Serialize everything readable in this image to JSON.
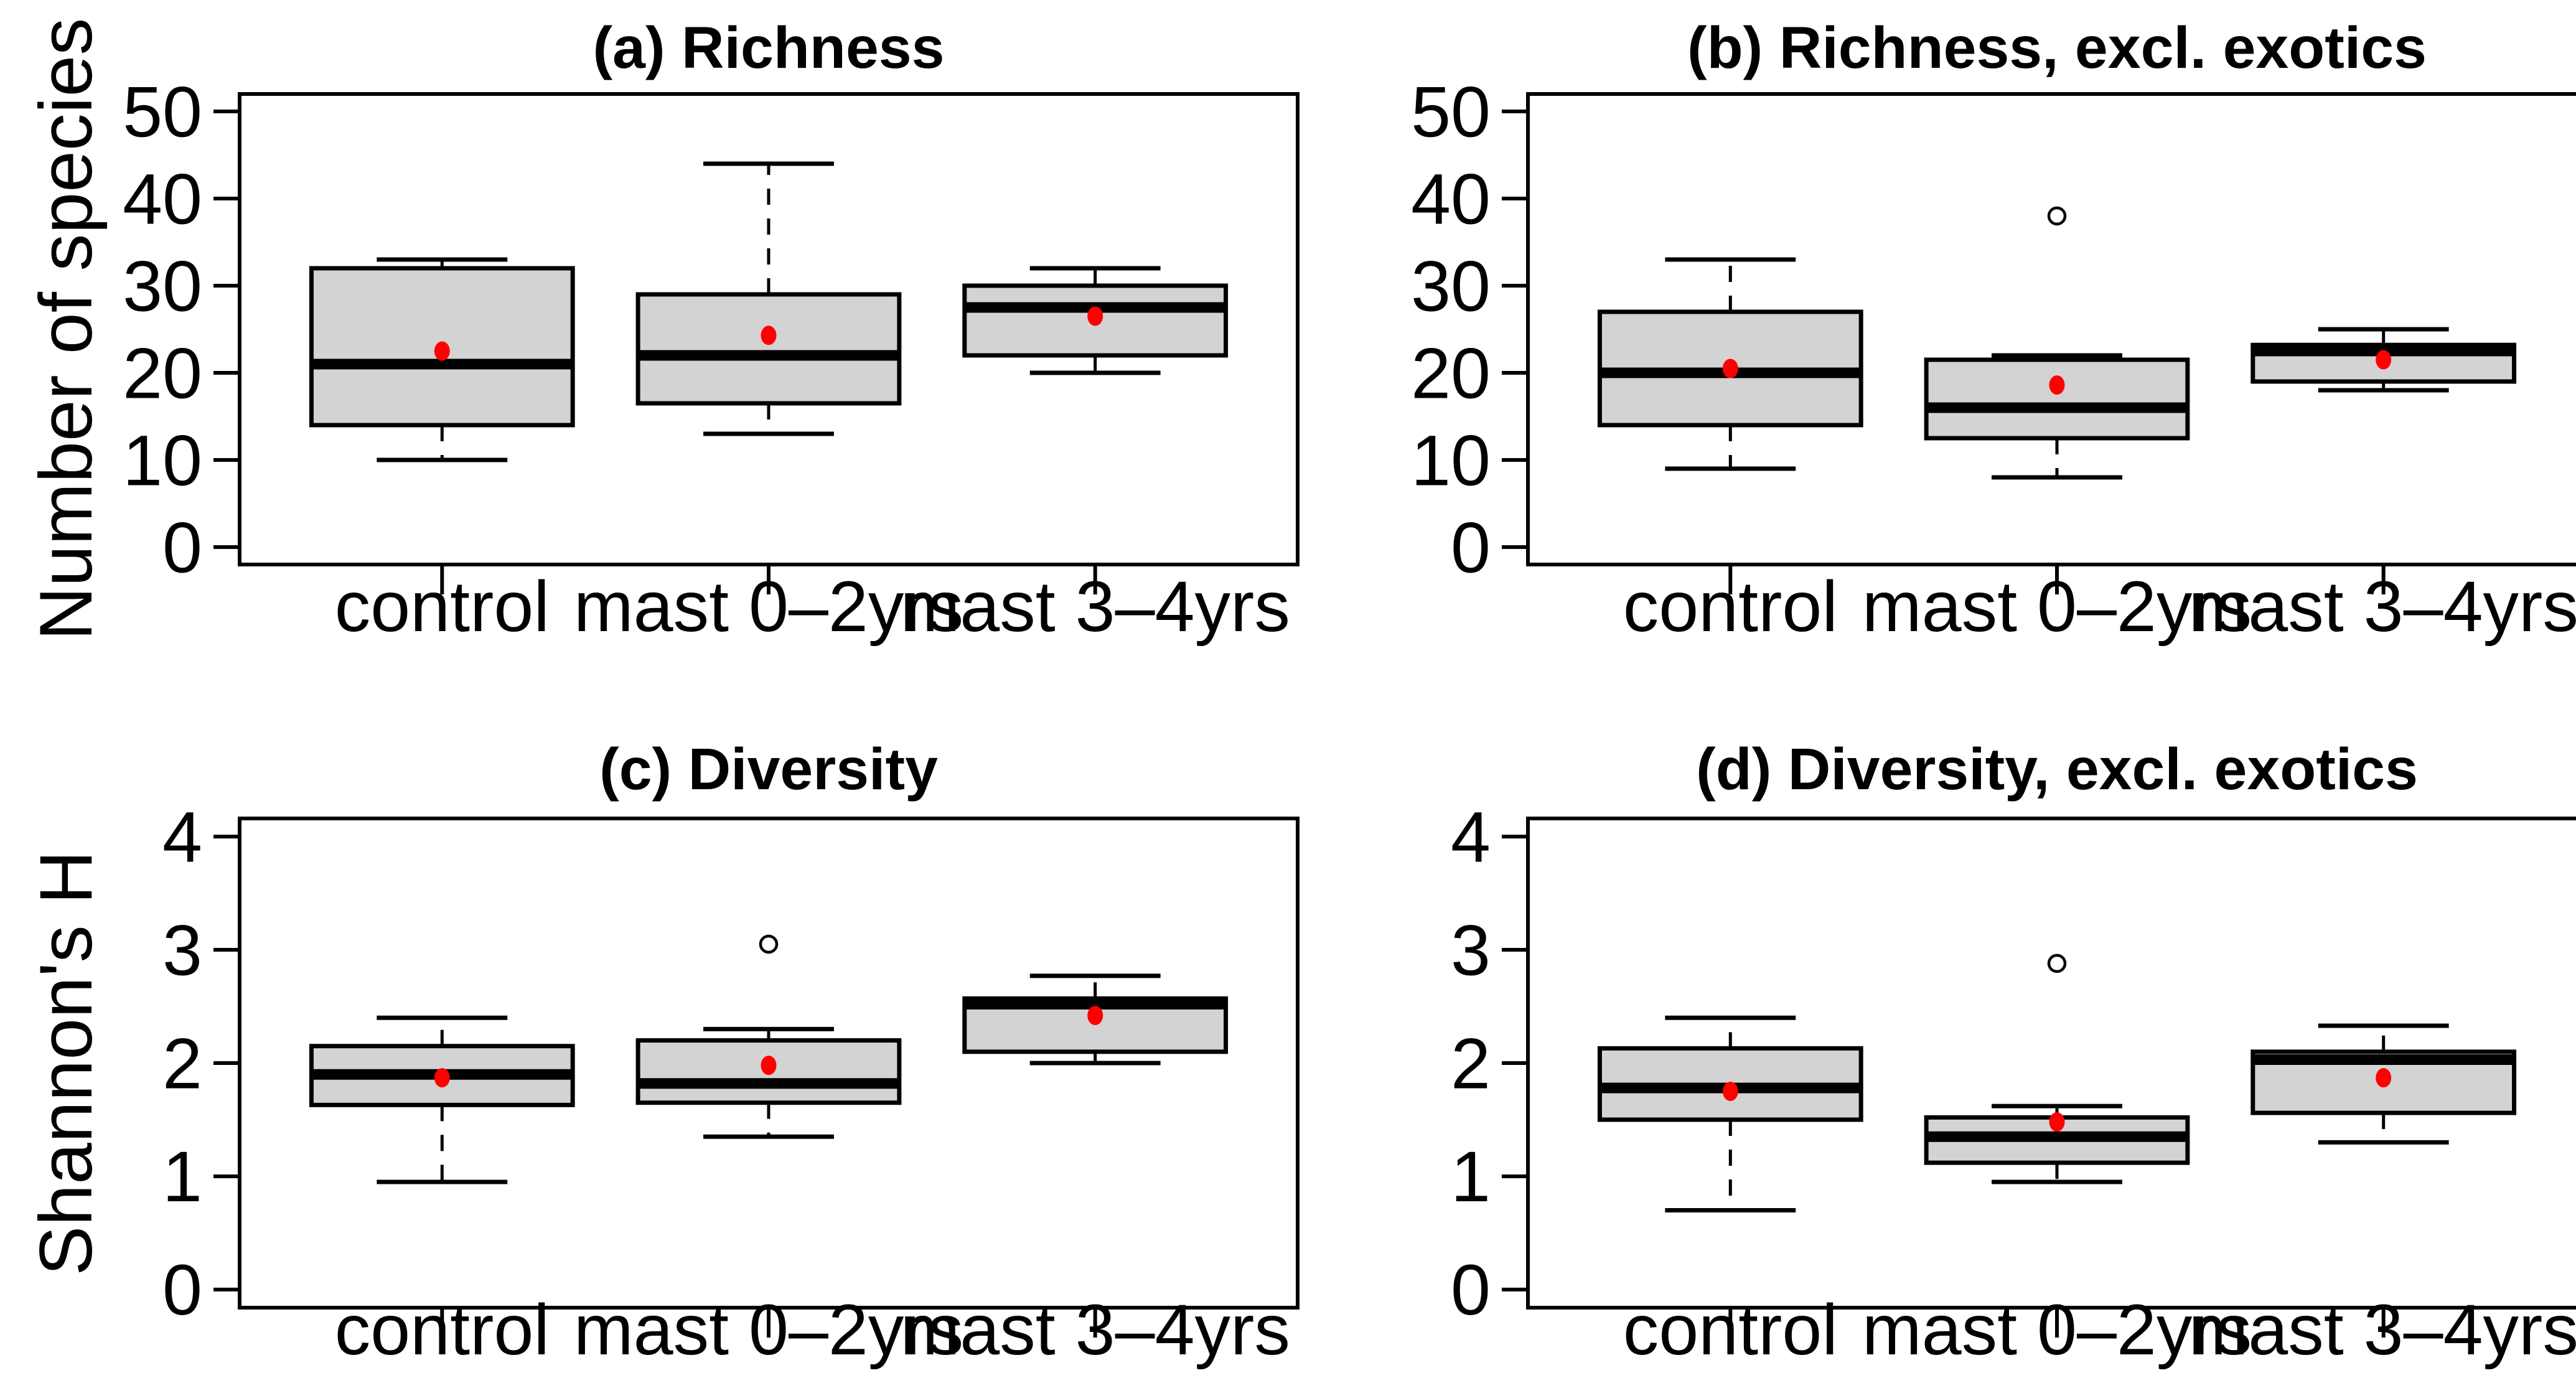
{
  "colors": {
    "background": "#ffffff",
    "axis": "#000000",
    "text": "#000000",
    "box_fill": "#d3d3d3",
    "box_border": "#000000",
    "median": "#000000",
    "whisker": "#000000",
    "mean_point": "#ff0000",
    "outlier": "#000000"
  },
  "chart_data": [
    {
      "id": "a",
      "type": "boxplot",
      "title": "(a) Richness",
      "ylabel": "Number of species",
      "ylim": [
        0,
        50
      ],
      "yticks": [
        0,
        10,
        20,
        30,
        40,
        50
      ],
      "grid": false,
      "categories": [
        "control",
        "mast 0–2yrs",
        "mast 3–4yrs"
      ],
      "groups": [
        {
          "label": "control",
          "whisker_low": 10,
          "q1": 14,
          "median": 21,
          "q3": 32,
          "whisker_high": 33,
          "mean": 22.5,
          "outliers": []
        },
        {
          "label": "mast 0–2yrs",
          "whisker_low": 13,
          "q1": 16.5,
          "median": 22,
          "q3": 29,
          "whisker_high": 44,
          "mean": 24.3,
          "outliers": []
        },
        {
          "label": "mast 3–4yrs",
          "whisker_low": 20,
          "q1": 22,
          "median": 27.5,
          "q3": 30,
          "whisker_high": 32,
          "mean": 26.5,
          "outliers": []
        }
      ]
    },
    {
      "id": "b",
      "type": "boxplot",
      "title": "(b) Richness, excl. exotics",
      "ylabel": "",
      "ylim": [
        0,
        50
      ],
      "yticks": [
        0,
        10,
        20,
        30,
        40,
        50
      ],
      "grid": false,
      "categories": [
        "control",
        "mast 0–2yrs",
        "mast 3–4yrs"
      ],
      "groups": [
        {
          "label": "control",
          "whisker_low": 9,
          "q1": 14,
          "median": 20,
          "q3": 27,
          "whisker_high": 33,
          "mean": 20.5,
          "outliers": []
        },
        {
          "label": "mast 0–2yrs",
          "whisker_low": 8,
          "q1": 12.5,
          "median": 16,
          "q3": 21.5,
          "whisker_high": 22,
          "mean": 18.6,
          "outliers": [
            38
          ]
        },
        {
          "label": "mast 3–4yrs",
          "whisker_low": 18,
          "q1": 19,
          "median": 22.5,
          "q3": 23.2,
          "whisker_high": 25,
          "mean": 21.5,
          "outliers": []
        }
      ]
    },
    {
      "id": "c",
      "type": "boxplot",
      "title": "(c) Diversity",
      "ylabel": "Shannon's H",
      "ylim": [
        0,
        4
      ],
      "yticks": [
        0,
        1,
        2,
        3,
        4
      ],
      "grid": false,
      "categories": [
        "control",
        "mast 0–2yrs",
        "mast 3–4yrs"
      ],
      "groups": [
        {
          "label": "control",
          "whisker_low": 0.95,
          "q1": 1.63,
          "median": 1.9,
          "q3": 2.15,
          "whisker_high": 2.4,
          "mean": 1.87,
          "outliers": []
        },
        {
          "label": "mast 0–2yrs",
          "whisker_low": 1.35,
          "q1": 1.65,
          "median": 1.82,
          "q3": 2.2,
          "whisker_high": 2.3,
          "mean": 1.98,
          "outliers": [
            3.05
          ]
        },
        {
          "label": "mast 3–4yrs",
          "whisker_low": 2.0,
          "q1": 2.1,
          "median": 2.52,
          "q3": 2.57,
          "whisker_high": 2.77,
          "mean": 2.42,
          "outliers": []
        }
      ]
    },
    {
      "id": "d",
      "type": "boxplot",
      "title": "(d) Diversity, excl. exotics",
      "ylabel": "",
      "ylim": [
        0,
        4
      ],
      "yticks": [
        0,
        1,
        2,
        3,
        4
      ],
      "grid": false,
      "categories": [
        "control",
        "mast 0–2yrs",
        "mast 3–4yrs"
      ],
      "groups": [
        {
          "label": "control",
          "whisker_low": 0.7,
          "q1": 1.5,
          "median": 1.78,
          "q3": 2.13,
          "whisker_high": 2.4,
          "mean": 1.75,
          "outliers": []
        },
        {
          "label": "mast 0–2yrs",
          "whisker_low": 0.95,
          "q1": 1.12,
          "median": 1.35,
          "q3": 1.52,
          "whisker_high": 1.62,
          "mean": 1.48,
          "outliers": [
            2.88
          ]
        },
        {
          "label": "mast 3–4yrs",
          "whisker_low": 1.3,
          "q1": 1.56,
          "median": 2.03,
          "q3": 2.1,
          "whisker_high": 2.33,
          "mean": 1.87,
          "outliers": []
        }
      ]
    }
  ]
}
